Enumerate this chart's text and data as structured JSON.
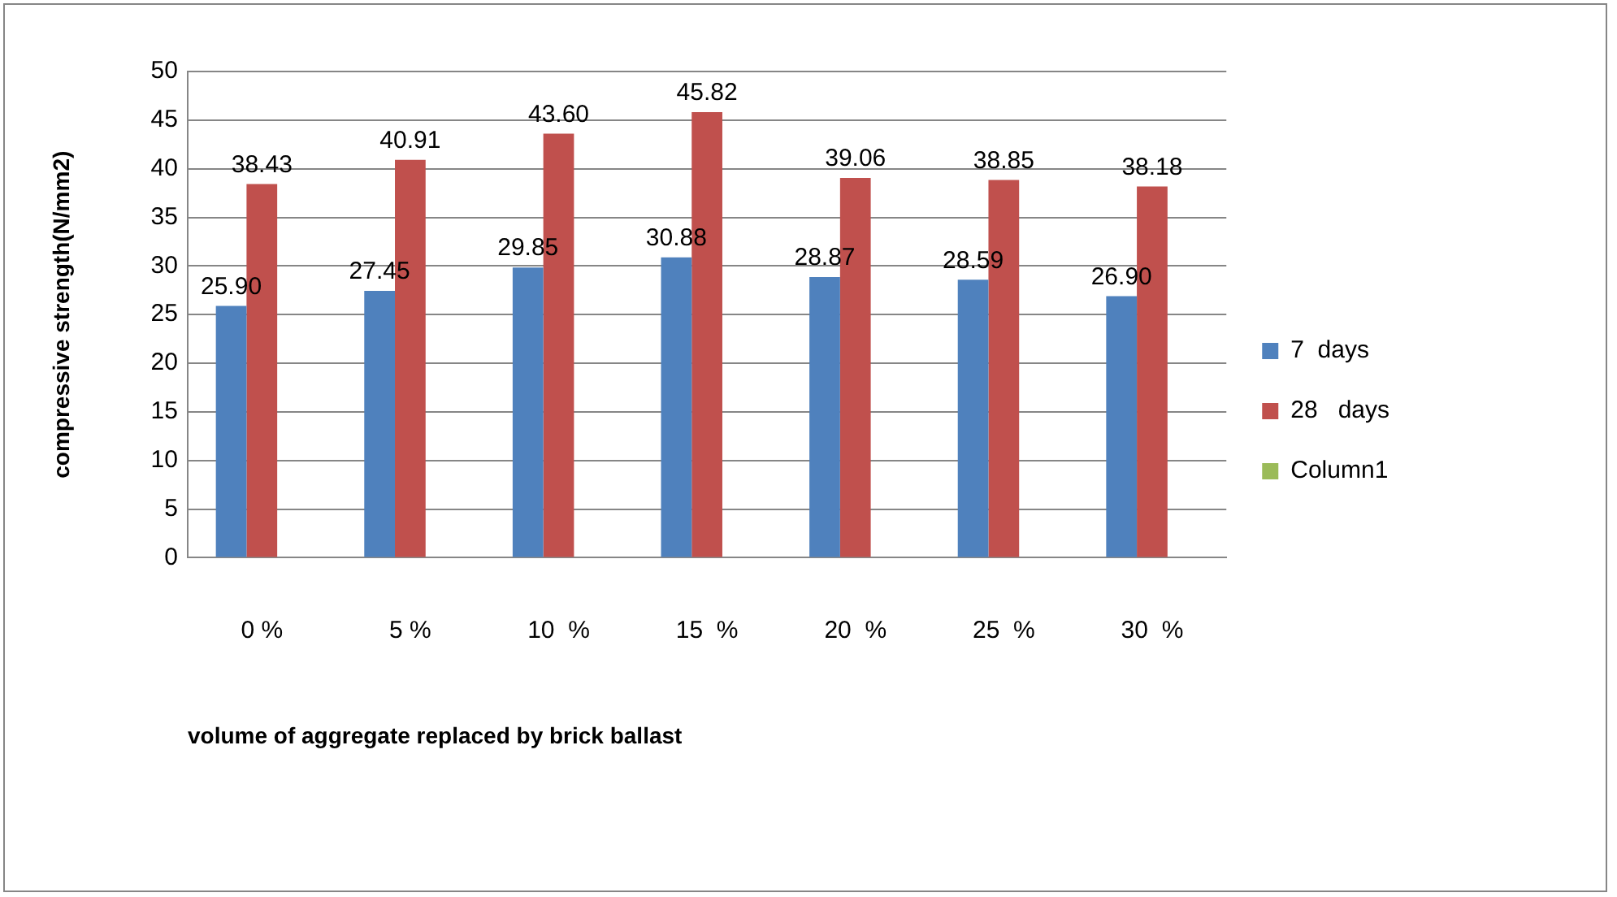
{
  "chart_data": {
    "type": "bar",
    "ylabel": "compressive strength(N/mm2)",
    "xlabel": "volume of aggregate replaced by brick ballast",
    "categories": [
      "0 %",
      "5 %",
      "10  %",
      "15  %",
      "20  %",
      "25  %",
      "30  %"
    ],
    "series": [
      {
        "name": "7  days",
        "color": "#4f81bd",
        "values": [
          25.9,
          27.45,
          29.85,
          30.88,
          28.87,
          28.59,
          26.9
        ],
        "value_labels": [
          "25.90",
          "27.45",
          "29.85",
          "30.88",
          "28.87",
          "28.59",
          "26.90"
        ]
      },
      {
        "name": "28   days",
        "color": "#c0504d",
        "values": [
          38.43,
          40.91,
          43.6,
          45.82,
          39.06,
          38.85,
          38.18
        ],
        "value_labels": [
          "38.43",
          "40.91",
          "43.60",
          "45.82",
          "39.06",
          "38.85",
          "38.18"
        ]
      },
      {
        "name": "Column1",
        "color": "#9bbb59",
        "values": [
          null,
          null,
          null,
          null,
          null,
          null,
          null
        ]
      }
    ],
    "ylim": [
      0,
      50
    ],
    "yticks": [
      0,
      5,
      10,
      15,
      20,
      25,
      30,
      35,
      40,
      45,
      50
    ],
    "grid": "y",
    "legend": "right"
  }
}
